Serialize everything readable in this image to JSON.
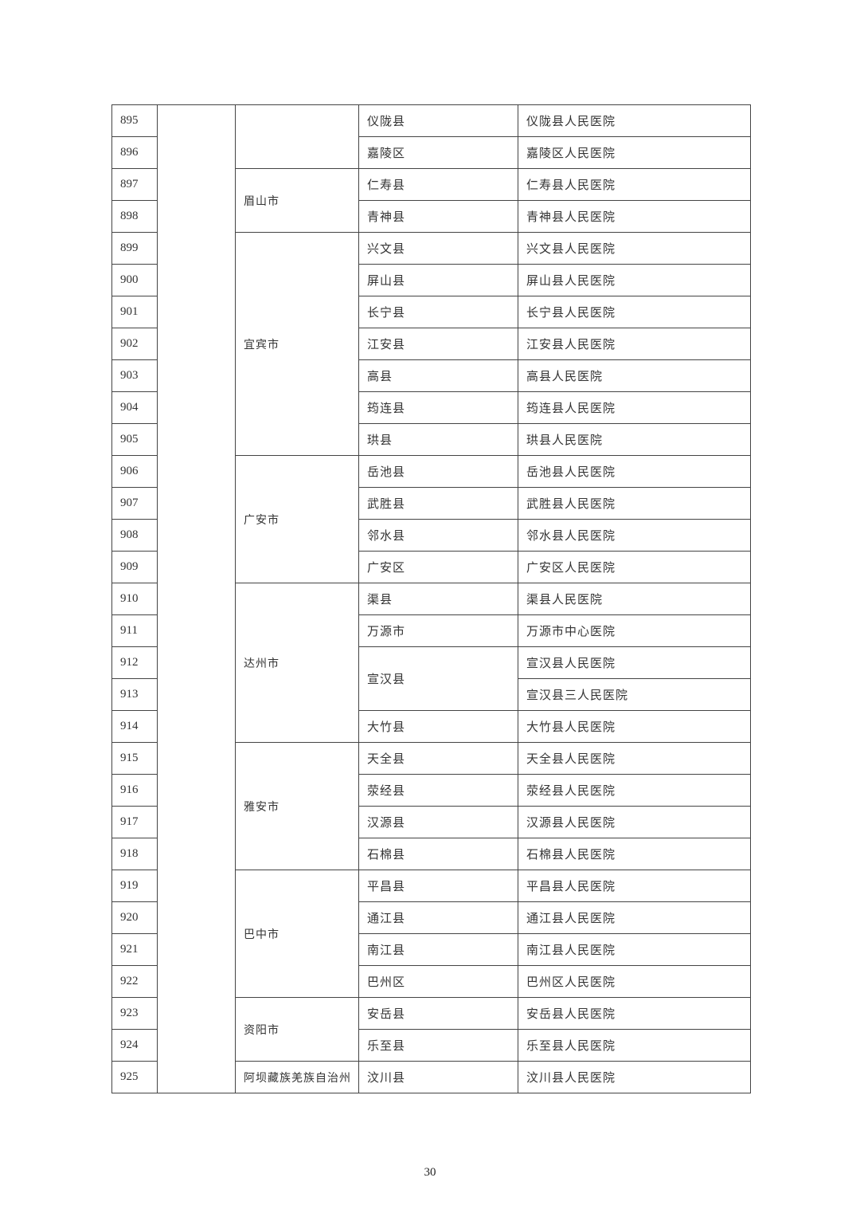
{
  "table": {
    "cities": [
      {
        "name": "",
        "rows": [
          {
            "num": "895",
            "county": "仪陇县",
            "hospital": "仪陇县人民医院"
          },
          {
            "num": "896",
            "county": "嘉陵区",
            "hospital": "嘉陵区人民医院"
          }
        ]
      },
      {
        "name": "眉山市",
        "rows": [
          {
            "num": "897",
            "county": "仁寿县",
            "hospital": "仁寿县人民医院"
          },
          {
            "num": "898",
            "county": "青神县",
            "hospital": "青神县人民医院"
          }
        ]
      },
      {
        "name": "宜宾市",
        "rows": [
          {
            "num": "899",
            "county": "兴文县",
            "hospital": "兴文县人民医院"
          },
          {
            "num": "900",
            "county": "屏山县",
            "hospital": "屏山县人民医院"
          },
          {
            "num": "901",
            "county": "长宁县",
            "hospital": "长宁县人民医院"
          },
          {
            "num": "902",
            "county": "江安县",
            "hospital": "江安县人民医院"
          },
          {
            "num": "903",
            "county": "高县",
            "hospital": "高县人民医院"
          },
          {
            "num": "904",
            "county": "筠连县",
            "hospital": "筠连县人民医院"
          },
          {
            "num": "905",
            "county": "珙县",
            "hospital": "珙县人民医院"
          }
        ]
      },
      {
        "name": "广安市",
        "rows": [
          {
            "num": "906",
            "county": "岳池县",
            "hospital": "岳池县人民医院"
          },
          {
            "num": "907",
            "county": "武胜县",
            "hospital": "武胜县人民医院"
          },
          {
            "num": "908",
            "county": "邻水县",
            "hospital": "邻水县人民医院"
          },
          {
            "num": "909",
            "county": "广安区",
            "hospital": "广安区人民医院"
          }
        ]
      },
      {
        "name": "达州市",
        "rows": [
          {
            "num": "910",
            "county": "渠县",
            "hospital": "渠县人民医院"
          },
          {
            "num": "911",
            "county": "万源市",
            "hospital": "万源市中心医院"
          },
          {
            "num": "912",
            "county": "宣汉县",
            "county_span": 2,
            "hospital": "宣汉县人民医院"
          },
          {
            "num": "913",
            "county": null,
            "hospital": "宣汉县三人民医院"
          },
          {
            "num": "914",
            "county": "大竹县",
            "hospital": "大竹县人民医院"
          }
        ]
      },
      {
        "name": "雅安市",
        "rows": [
          {
            "num": "915",
            "county": "天全县",
            "hospital": "天全县人民医院"
          },
          {
            "num": "916",
            "county": "荥经县",
            "hospital": "荥经县人民医院"
          },
          {
            "num": "917",
            "county": "汉源县",
            "hospital": "汉源县人民医院"
          },
          {
            "num": "918",
            "county": "石棉县",
            "hospital": "石棉县人民医院"
          }
        ]
      },
      {
        "name": "巴中市",
        "rows": [
          {
            "num": "919",
            "county": "平昌县",
            "hospital": "平昌县人民医院"
          },
          {
            "num": "920",
            "county": "通江县",
            "hospital": "通江县人民医院"
          },
          {
            "num": "921",
            "county": "南江县",
            "hospital": "南江县人民医院"
          },
          {
            "num": "922",
            "county": "巴州区",
            "hospital": "巴州区人民医院"
          }
        ]
      },
      {
        "name": "资阳市",
        "rows": [
          {
            "num": "923",
            "county": "安岳县",
            "hospital": "安岳县人民医院"
          },
          {
            "num": "924",
            "county": "乐至县",
            "hospital": "乐至县人民医院"
          }
        ]
      },
      {
        "name": "阿坝藏族羌族自治州",
        "rows": [
          {
            "num": "925",
            "county": "汶川县",
            "hospital": "汶川县人民医院"
          }
        ]
      }
    ]
  },
  "page_number": "30"
}
